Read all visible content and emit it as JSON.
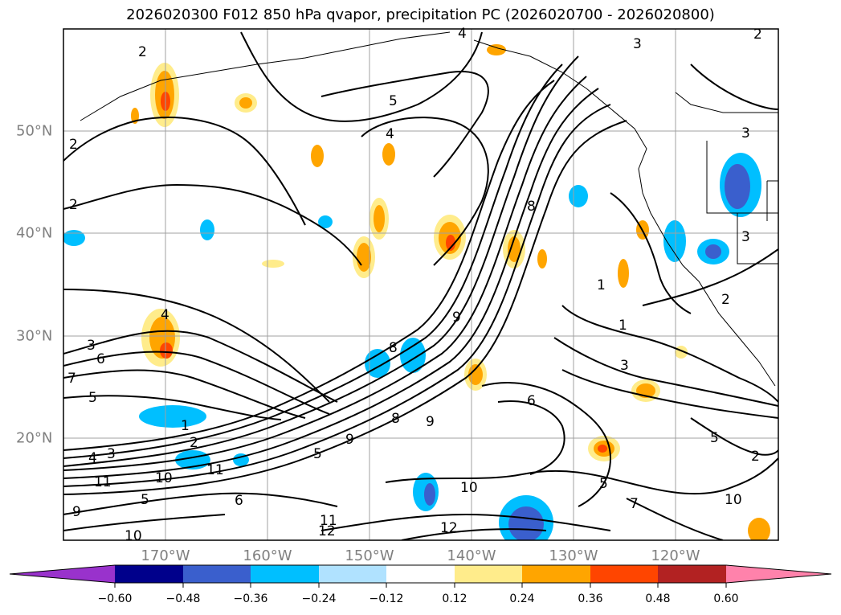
{
  "title": "2026020300 F012 850 hPa qvapor, precipitation PC (2026020700 - 2026020800)",
  "map": {
    "lon_labels": [
      "170°W",
      "160°W",
      "150°W",
      "140°W",
      "130°W",
      "120°W"
    ],
    "lat_labels": [
      "50°N",
      "40°N",
      "30°N",
      "20°N"
    ],
    "contour_labels": [
      "1",
      "2",
      "3",
      "4",
      "5",
      "6",
      "7",
      "8",
      "9",
      "10",
      "11",
      "12"
    ]
  },
  "colorbar": {
    "ticks": [
      "−0.60",
      "−0.48",
      "−0.36",
      "−0.24",
      "−0.12",
      "0.12",
      "0.24",
      "0.36",
      "0.48",
      "0.60"
    ],
    "colors": [
      "#9932cc",
      "#00008b",
      "#3a5fcd",
      "#00bfff",
      "#b0e2ff",
      "#ffffff",
      "#ffec8b",
      "#ffa500",
      "#ff4500",
      "#b22222",
      "#ff82ab"
    ]
  }
}
